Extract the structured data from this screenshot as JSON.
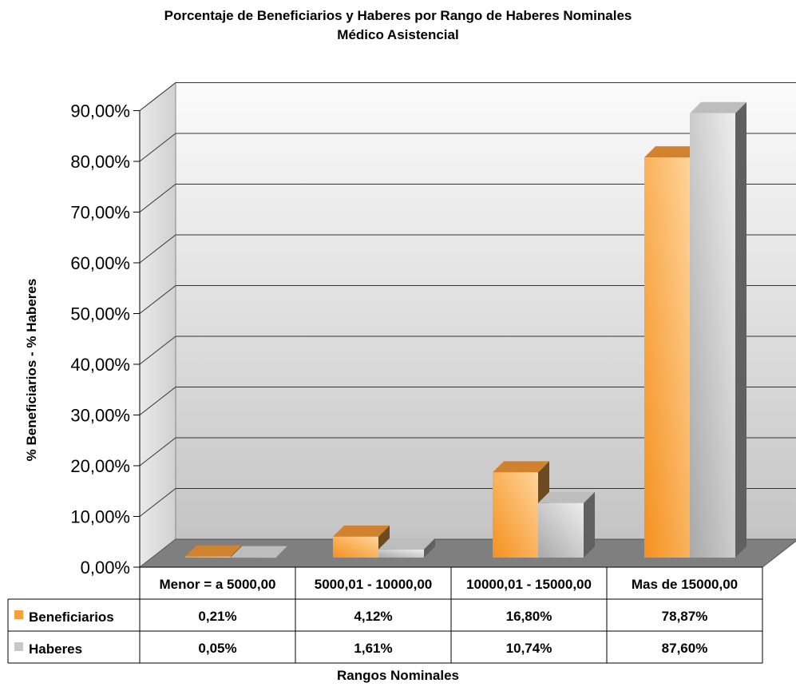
{
  "chart_data": {
    "type": "bar",
    "title": "Porcentaje de Beneficiarios y Haberes por Rango de Haberes Nominales",
    "subtitle": "Médico Asistencial",
    "xlabel": "Rangos Nominales",
    "ylabel": "% Beneficiarios - % Haberes",
    "ylim": [
      0,
      90
    ],
    "yticks": [
      "0,00%",
      "10,00%",
      "20,00%",
      "30,00%",
      "40,00%",
      "50,00%",
      "60,00%",
      "70,00%",
      "80,00%",
      "90,00%"
    ],
    "categories": [
      "Menor = a 5000,00",
      "5000,01 - 10000,00",
      "10000,01 - 15000,00",
      "Mas de 15000,00"
    ],
    "series": [
      {
        "name": "Beneficiarios",
        "values": [
          0.21,
          4.12,
          16.8,
          78.87
        ],
        "labels": [
          "0,21%",
          "4,12%",
          "16,80%",
          "78,87%"
        ],
        "color": "#f7a03c"
      },
      {
        "name": "Haberes",
        "values": [
          0.05,
          1.61,
          10.74,
          87.6
        ],
        "labels": [
          "0,05%",
          "1,61%",
          "10,74%",
          "87,60%"
        ],
        "color": "#c8c8c8"
      }
    ],
    "grid": true,
    "legend": "data-table"
  }
}
